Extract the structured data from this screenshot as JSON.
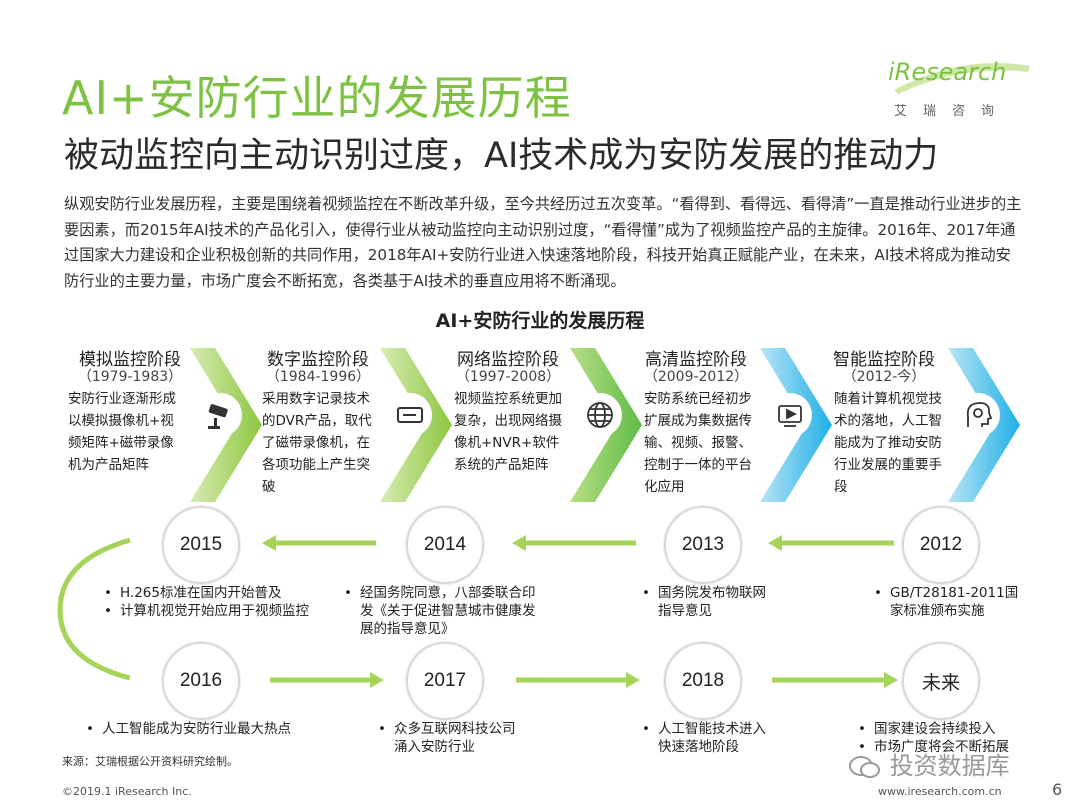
{
  "header": {
    "title": "AI+安防行业的发展历程",
    "subtitle": "被动监控向主动识别过度，AI技术成为安防发展的推动力",
    "logo_text": "iResearch",
    "logo_sub": "艾瑞咨询"
  },
  "intro": "纵观安防行业发展历程，主要是围绕着视频监控在不断改革升级，至今共经历过五次变革。“看得到、看得远、看得清”一直是推动行业进步的主要因素，而2015年AI技术的产品化引入，使得行业从被动监控向主动识别过度，“看得懂”成为了视频监控产品的主旋律。2016年、2017年通过国家大力建设和企业积极创新的共同作用，2018年AI+安防行业进入快速落地阶段，科技开始真正赋能产业，在未来，AI技术将成为推动安防行业的主要力量，市场广度会不断拓宽，各类基于AI技术的垂直应用将不断涌现。",
  "diagram_title": "AI+安防行业的发展历程",
  "stages": [
    {
      "name": "模拟监控阶段",
      "years": "（1979-1983）",
      "desc": "安防行业逐渐形成以模拟摄像机+视频矩阵+磁带录像机为产品矩阵",
      "icon": "cctv-camera-icon",
      "color": "#8cc63f"
    },
    {
      "name": "数字监控阶段",
      "years": "（1984-1996）",
      "desc": "采用数字记录技术的DVR产品，取代了磁带录像机，在各项功能上产生突破",
      "icon": "dvr-device-icon",
      "color": "#8cc63f"
    },
    {
      "name": "网络监控阶段",
      "years": "（1997-2008）",
      "desc": "视频监控系统更加复杂，出现网络摄像机+NVR+软件系统的产品矩阵",
      "icon": "globe-icon",
      "color": "#6cc04a"
    },
    {
      "name": "高清监控阶段",
      "years": "（2009-2012）",
      "desc": "安防系统已经初步扩展成为集数据传输、视频、报警、控制于一体的平台化应用",
      "icon": "video-play-icon",
      "color": "#29b6e8"
    },
    {
      "name": "智能监控阶段",
      "years": "（2012-今）",
      "desc": "随着计算机视觉技术的落地，人工智能成为了推动安防行业发展的重要手段",
      "icon": "ai-head-icon",
      "color": "#29b6e8"
    }
  ],
  "milestones_row1": [
    {
      "year": "2015",
      "events": [
        "H.265标准在国内开始普及",
        "计算机视觉开始应用于视频监控"
      ]
    },
    {
      "year": "2014",
      "events": [
        "经国务院同意，八部委联合印发《关于促进智慧城市健康发展的指导意见》"
      ]
    },
    {
      "year": "2013",
      "events": [
        "国务院发布物联网指导意见"
      ]
    },
    {
      "year": "2012",
      "events": [
        "GB/T28181-2011国家标准颁布实施"
      ]
    }
  ],
  "milestones_row2": [
    {
      "year": "2016",
      "events": [
        "人工智能成为安防行业最大热点"
      ]
    },
    {
      "year": "2017",
      "events": [
        "众多互联网科技公司涌入安防行业"
      ]
    },
    {
      "year": "2018",
      "events": [
        "人工智能技术进入快速落地阶段"
      ]
    },
    {
      "year": "未来",
      "events": [
        "国家建设会持续投入",
        "市场广度将会不断拓展"
      ]
    }
  ],
  "footer": {
    "source": "来源：艾瑞根据公开资料研究绘制。",
    "copyright": "©2019.1 iResearch Inc.",
    "url": "www.iresearch.com.cn",
    "page": "6",
    "watermark": "投资数据库"
  },
  "colors": {
    "title_green": "#7dc242",
    "arrow_green": "#8cc63f",
    "arrow_blue": "#29b6e8",
    "timeline_green": "#a6d35a"
  }
}
